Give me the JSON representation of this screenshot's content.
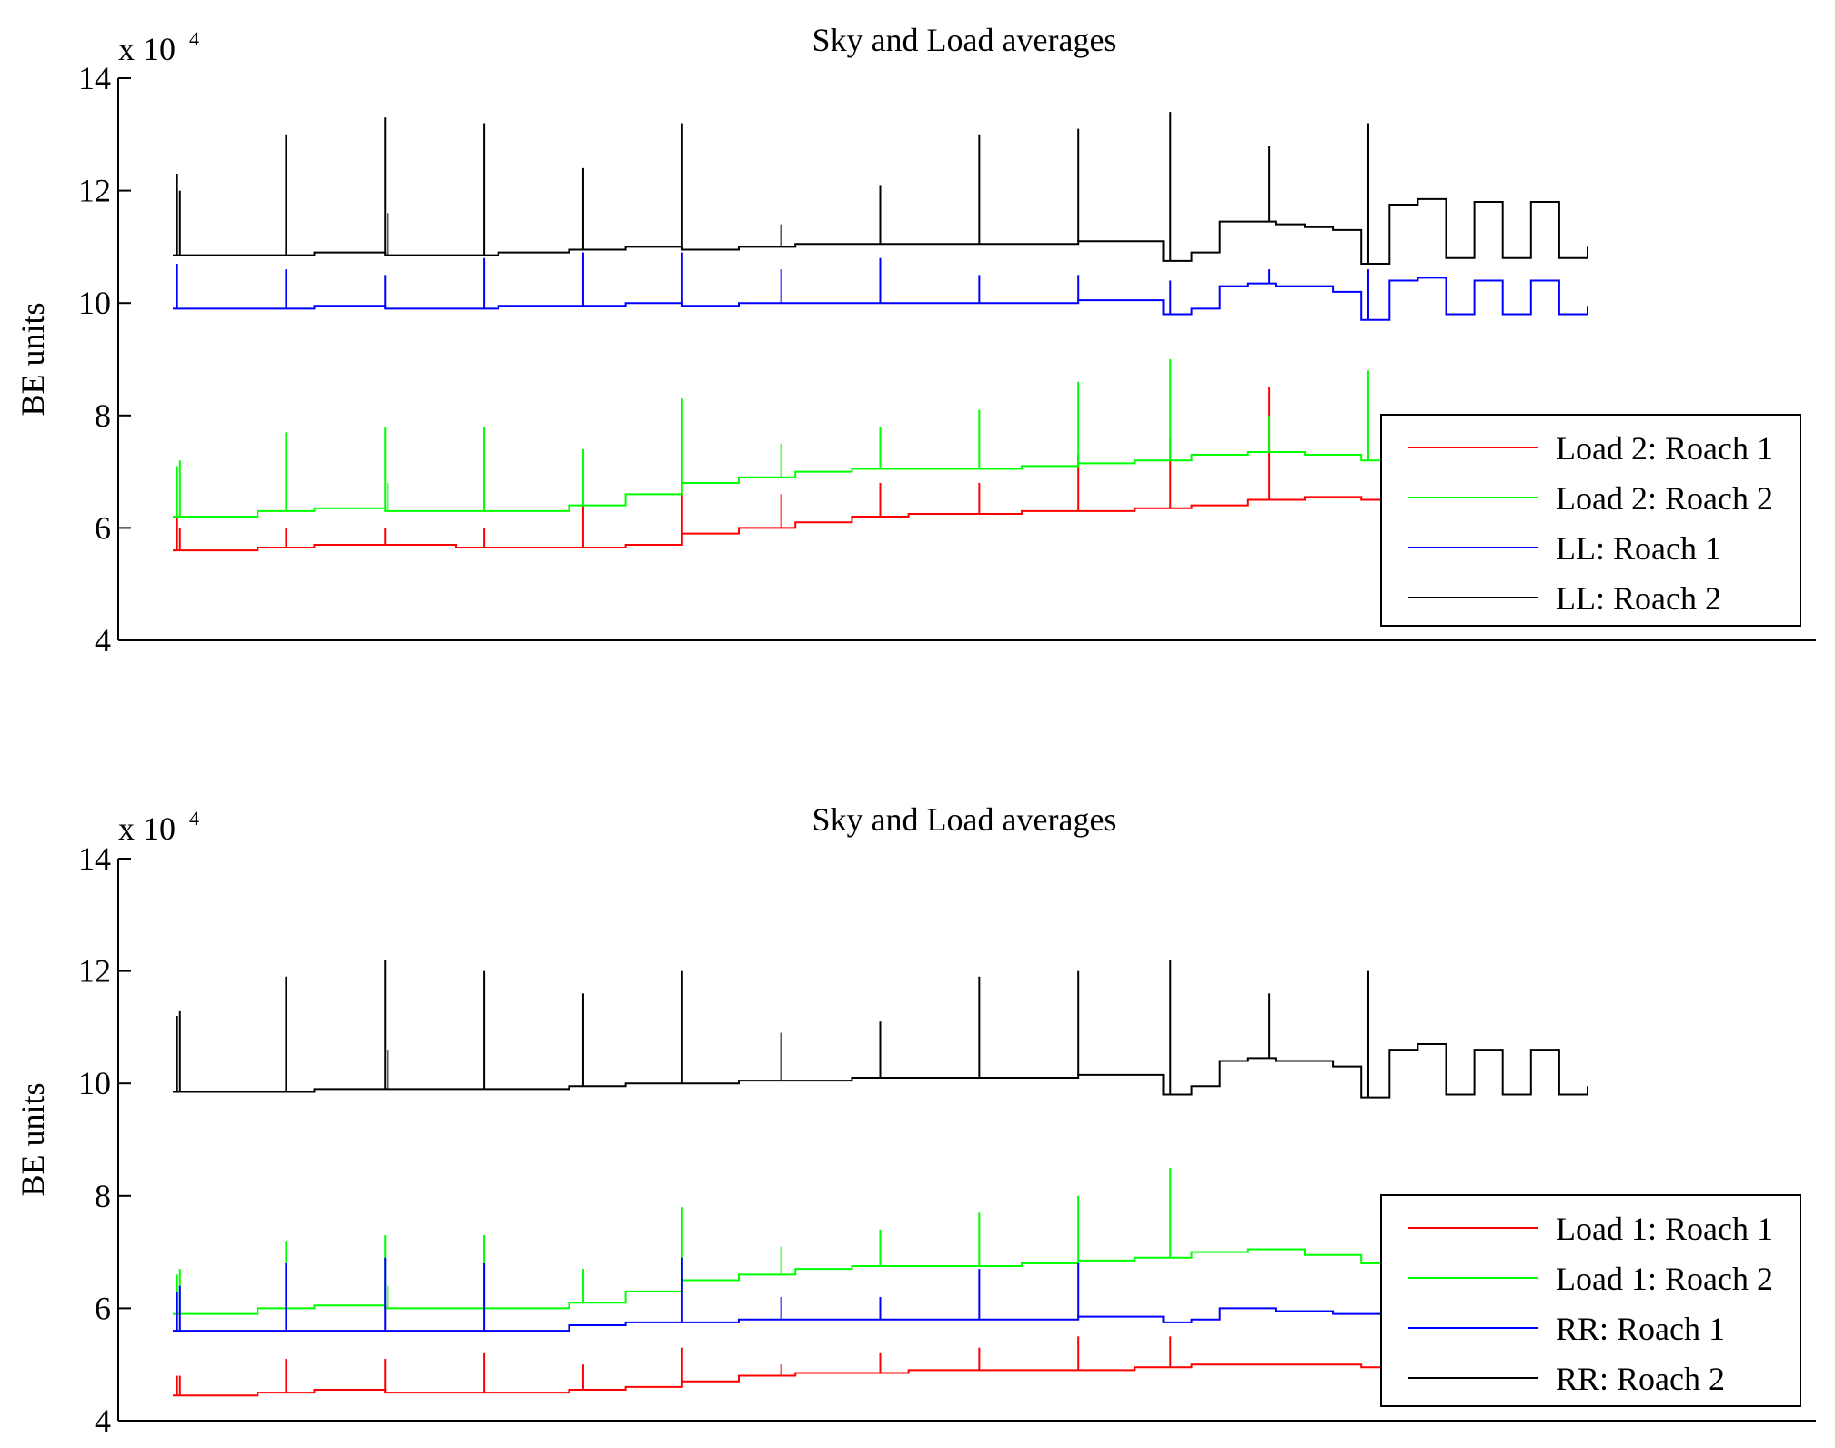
{
  "chart_data": [
    {
      "type": "line",
      "title": "Sky and Load averages",
      "xlabel": "",
      "ylabel": "BE units",
      "y_exponent_label": "x 10",
      "y_exponent_power": "4",
      "x_range": [
        0,
        1000
      ],
      "ylim": [
        4,
        14
      ],
      "yticks": [
        4,
        6,
        8,
        10,
        12,
        14
      ],
      "ytick_labels": [
        "4",
        "6",
        "8",
        "10",
        "12",
        "14"
      ],
      "grid": false,
      "legend_position": "lower-right",
      "series": [
        {
          "name": "Load 2: Roach 1",
          "color": "#ff0000",
          "x": [
            0,
            60,
            100,
            150,
            200,
            230,
            280,
            320,
            360,
            400,
            440,
            480,
            520,
            560,
            600,
            640,
            680,
            720,
            760,
            800,
            840,
            880,
            900,
            950,
            1000
          ],
          "values": [
            5.6,
            5.65,
            5.7,
            5.7,
            5.65,
            5.65,
            5.65,
            5.7,
            5.9,
            6.0,
            6.1,
            6.2,
            6.25,
            6.25,
            6.3,
            6.3,
            6.35,
            6.4,
            6.5,
            6.55,
            6.5,
            6.4,
            6.35,
            6.1,
            6.05
          ],
          "spikes": [
            {
              "x": 3,
              "y": 6.2
            },
            {
              "x": 5,
              "y": 6.0
            },
            {
              "x": 80,
              "y": 6.0
            },
            {
              "x": 150,
              "y": 6.0
            },
            {
              "x": 220,
              "y": 6.0
            },
            {
              "x": 290,
              "y": 6.4
            },
            {
              "x": 360,
              "y": 6.6
            },
            {
              "x": 430,
              "y": 6.6
            },
            {
              "x": 500,
              "y": 6.8
            },
            {
              "x": 570,
              "y": 6.8
            },
            {
              "x": 640,
              "y": 7.3
            },
            {
              "x": 705,
              "y": 7.6
            },
            {
              "x": 775,
              "y": 8.5
            }
          ]
        },
        {
          "name": "Load 2: Roach 2",
          "color": "#00ff00",
          "x": [
            0,
            60,
            100,
            150,
            200,
            230,
            280,
            320,
            360,
            400,
            440,
            480,
            520,
            560,
            600,
            640,
            680,
            720,
            760,
            800,
            840,
            880,
            900,
            950,
            1000
          ],
          "values": [
            6.2,
            6.3,
            6.35,
            6.3,
            6.3,
            6.3,
            6.4,
            6.6,
            6.8,
            6.9,
            7.0,
            7.05,
            7.05,
            7.05,
            7.1,
            7.15,
            7.2,
            7.3,
            7.35,
            7.3,
            7.2,
            7.1,
            7.0,
            6.9,
            6.9
          ],
          "spikes": [
            {
              "x": 3,
              "y": 7.1
            },
            {
              "x": 5,
              "y": 7.2
            },
            {
              "x": 80,
              "y": 7.7
            },
            {
              "x": 150,
              "y": 7.8
            },
            {
              "x": 152,
              "y": 6.8
            },
            {
              "x": 220,
              "y": 7.8
            },
            {
              "x": 290,
              "y": 7.4
            },
            {
              "x": 360,
              "y": 8.3
            },
            {
              "x": 430,
              "y": 7.5
            },
            {
              "x": 500,
              "y": 7.8
            },
            {
              "x": 570,
              "y": 8.1
            },
            {
              "x": 640,
              "y": 8.6
            },
            {
              "x": 705,
              "y": 9.0
            },
            {
              "x": 775,
              "y": 8.0
            },
            {
              "x": 845,
              "y": 8.8
            }
          ]
        },
        {
          "name": "LL: Roach 1",
          "color": "#0000ff",
          "x": [
            0,
            60,
            100,
            150,
            200,
            230,
            280,
            320,
            360,
            400,
            440,
            480,
            520,
            560,
            600,
            640,
            680,
            700,
            720,
            740,
            760,
            780,
            800,
            820,
            840,
            860,
            880,
            900,
            920,
            940,
            960,
            980,
            1000
          ],
          "values": [
            9.9,
            9.9,
            9.95,
            9.9,
            9.9,
            9.95,
            9.95,
            10.0,
            9.95,
            10.0,
            10.0,
            10.0,
            10.0,
            10.0,
            10.0,
            10.05,
            10.05,
            9.8,
            9.9,
            10.3,
            10.35,
            10.3,
            10.3,
            10.2,
            9.7,
            10.4,
            10.45,
            9.8,
            10.4,
            9.8,
            10.4,
            9.8,
            9.95
          ],
          "spikes": [
            {
              "x": 3,
              "y": 10.7
            },
            {
              "x": 80,
              "y": 10.6
            },
            {
              "x": 150,
              "y": 10.5
            },
            {
              "x": 220,
              "y": 10.8
            },
            {
              "x": 290,
              "y": 10.9
            },
            {
              "x": 360,
              "y": 10.9
            },
            {
              "x": 430,
              "y": 10.6
            },
            {
              "x": 500,
              "y": 10.8
            },
            {
              "x": 570,
              "y": 10.5
            },
            {
              "x": 640,
              "y": 10.5
            },
            {
              "x": 705,
              "y": 10.4
            },
            {
              "x": 775,
              "y": 10.6
            },
            {
              "x": 845,
              "y": 10.6
            }
          ]
        },
        {
          "name": "LL: Roach 2",
          "color": "#000000",
          "x": [
            0,
            60,
            100,
            150,
            200,
            230,
            280,
            320,
            360,
            400,
            440,
            480,
            520,
            560,
            600,
            640,
            680,
            700,
            720,
            740,
            760,
            780,
            800,
            820,
            840,
            860,
            880,
            900,
            920,
            940,
            960,
            980,
            1000
          ],
          "values": [
            10.85,
            10.85,
            10.9,
            10.85,
            10.85,
            10.9,
            10.95,
            11.0,
            10.95,
            11.0,
            11.05,
            11.05,
            11.05,
            11.05,
            11.05,
            11.1,
            11.1,
            10.75,
            10.9,
            11.45,
            11.45,
            11.4,
            11.35,
            11.3,
            10.7,
            11.75,
            11.85,
            10.8,
            11.8,
            10.8,
            11.8,
            10.8,
            11.0
          ],
          "spikes": [
            {
              "x": 3,
              "y": 12.3
            },
            {
              "x": 5,
              "y": 12.0
            },
            {
              "x": 80,
              "y": 13.0
            },
            {
              "x": 150,
              "y": 13.3
            },
            {
              "x": 152,
              "y": 11.6
            },
            {
              "x": 220,
              "y": 13.2
            },
            {
              "x": 290,
              "y": 12.4
            },
            {
              "x": 360,
              "y": 13.2
            },
            {
              "x": 430,
              "y": 11.4
            },
            {
              "x": 500,
              "y": 12.1
            },
            {
              "x": 570,
              "y": 13.0
            },
            {
              "x": 640,
              "y": 13.1
            },
            {
              "x": 705,
              "y": 13.4
            },
            {
              "x": 775,
              "y": 12.8
            },
            {
              "x": 845,
              "y": 13.2
            }
          ]
        }
      ]
    },
    {
      "type": "line",
      "title": "Sky and Load averages",
      "xlabel": "",
      "ylabel": "BE units",
      "y_exponent_label": "x 10",
      "y_exponent_power": "4",
      "x_range": [
        0,
        1000
      ],
      "ylim": [
        4,
        14
      ],
      "yticks": [
        4,
        6,
        8,
        10,
        12,
        14
      ],
      "ytick_labels": [
        "4",
        "6",
        "8",
        "10",
        "12",
        "14"
      ],
      "grid": false,
      "legend_position": "lower-right",
      "series": [
        {
          "name": "Load 1: Roach 1",
          "color": "#ff0000",
          "x": [
            0,
            60,
            100,
            150,
            200,
            230,
            280,
            320,
            360,
            400,
            440,
            480,
            520,
            560,
            600,
            640,
            680,
            720,
            760,
            800,
            840,
            880,
            900,
            950,
            1000
          ],
          "values": [
            4.45,
            4.5,
            4.55,
            4.5,
            4.5,
            4.5,
            4.55,
            4.6,
            4.7,
            4.8,
            4.85,
            4.85,
            4.9,
            4.9,
            4.9,
            4.9,
            4.95,
            5.0,
            5.0,
            5.0,
            4.95,
            4.9,
            4.85,
            4.8,
            4.8
          ],
          "spikes": [
            {
              "x": 3,
              "y": 4.8
            },
            {
              "x": 5,
              "y": 4.8
            },
            {
              "x": 80,
              "y": 5.1
            },
            {
              "x": 150,
              "y": 5.1
            },
            {
              "x": 220,
              "y": 5.2
            },
            {
              "x": 290,
              "y": 5.0
            },
            {
              "x": 360,
              "y": 5.3
            },
            {
              "x": 430,
              "y": 5.0
            },
            {
              "x": 500,
              "y": 5.2
            },
            {
              "x": 570,
              "y": 5.3
            },
            {
              "x": 640,
              "y": 5.5
            },
            {
              "x": 705,
              "y": 5.5
            }
          ]
        },
        {
          "name": "Load 1: Roach 2",
          "color": "#00ff00",
          "x": [
            0,
            60,
            100,
            150,
            200,
            230,
            280,
            320,
            360,
            400,
            440,
            480,
            520,
            560,
            600,
            640,
            680,
            720,
            760,
            800,
            840,
            880,
            900,
            950,
            1000
          ],
          "values": [
            5.9,
            6.0,
            6.05,
            6.0,
            6.0,
            6.0,
            6.1,
            6.3,
            6.5,
            6.6,
            6.7,
            6.75,
            6.75,
            6.75,
            6.8,
            6.85,
            6.9,
            7.0,
            7.05,
            6.95,
            6.8,
            6.7,
            6.6,
            6.5,
            6.5
          ],
          "spikes": [
            {
              "x": 3,
              "y": 6.6
            },
            {
              "x": 5,
              "y": 6.7
            },
            {
              "x": 80,
              "y": 7.2
            },
            {
              "x": 150,
              "y": 7.3
            },
            {
              "x": 152,
              "y": 6.4
            },
            {
              "x": 220,
              "y": 7.3
            },
            {
              "x": 290,
              "y": 6.7
            },
            {
              "x": 360,
              "y": 7.8
            },
            {
              "x": 430,
              "y": 7.1
            },
            {
              "x": 500,
              "y": 7.4
            },
            {
              "x": 570,
              "y": 7.7
            },
            {
              "x": 640,
              "y": 8.0
            },
            {
              "x": 705,
              "y": 8.5
            }
          ]
        },
        {
          "name": "RR: Roach 1",
          "color": "#0000ff",
          "x": [
            0,
            60,
            100,
            150,
            200,
            230,
            280,
            320,
            360,
            400,
            440,
            480,
            520,
            560,
            600,
            640,
            680,
            700,
            720,
            740,
            760,
            780,
            800,
            820,
            840,
            860,
            880,
            900,
            920,
            940,
            960,
            980,
            1000
          ],
          "values": [
            5.6,
            5.6,
            5.6,
            5.6,
            5.6,
            5.6,
            5.7,
            5.75,
            5.75,
            5.8,
            5.8,
            5.8,
            5.8,
            5.8,
            5.8,
            5.85,
            5.85,
            5.75,
            5.8,
            6.0,
            6.0,
            5.95,
            5.95,
            5.9,
            5.9,
            5.9,
            5.9,
            5.9,
            5.9,
            5.9,
            5.9,
            5.9,
            5.9
          ],
          "spikes": [
            {
              "x": 3,
              "y": 6.3
            },
            {
              "x": 5,
              "y": 6.4
            },
            {
              "x": 80,
              "y": 6.8
            },
            {
              "x": 150,
              "y": 6.9
            },
            {
              "x": 220,
              "y": 6.8
            },
            {
              "x": 360,
              "y": 6.9
            },
            {
              "x": 430,
              "y": 6.2
            },
            {
              "x": 500,
              "y": 6.2
            },
            {
              "x": 570,
              "y": 6.7
            },
            {
              "x": 640,
              "y": 6.8
            }
          ]
        },
        {
          "name": "RR: Roach 2",
          "color": "#000000",
          "x": [
            0,
            60,
            100,
            150,
            200,
            230,
            280,
            320,
            360,
            400,
            440,
            480,
            520,
            560,
            600,
            640,
            680,
            700,
            720,
            740,
            760,
            780,
            800,
            820,
            840,
            860,
            880,
            900,
            920,
            940,
            960,
            980,
            1000
          ],
          "values": [
            9.85,
            9.85,
            9.9,
            9.9,
            9.9,
            9.9,
            9.95,
            10.0,
            10.0,
            10.05,
            10.05,
            10.1,
            10.1,
            10.1,
            10.1,
            10.15,
            10.15,
            9.8,
            9.95,
            10.4,
            10.45,
            10.4,
            10.4,
            10.3,
            9.75,
            10.6,
            10.7,
            9.8,
            10.6,
            9.8,
            10.6,
            9.8,
            9.95
          ],
          "spikes": [
            {
              "x": 3,
              "y": 11.2
            },
            {
              "x": 5,
              "y": 11.3
            },
            {
              "x": 80,
              "y": 11.9
            },
            {
              "x": 150,
              "y": 12.2
            },
            {
              "x": 152,
              "y": 10.6
            },
            {
              "x": 220,
              "y": 12.0
            },
            {
              "x": 290,
              "y": 11.6
            },
            {
              "x": 360,
              "y": 12.0
            },
            {
              "x": 430,
              "y": 10.9
            },
            {
              "x": 500,
              "y": 11.1
            },
            {
              "x": 570,
              "y": 11.9
            },
            {
              "x": 640,
              "y": 12.0
            },
            {
              "x": 705,
              "y": 12.2
            },
            {
              "x": 775,
              "y": 11.6
            },
            {
              "x": 845,
              "y": 12.0
            }
          ]
        }
      ]
    }
  ]
}
